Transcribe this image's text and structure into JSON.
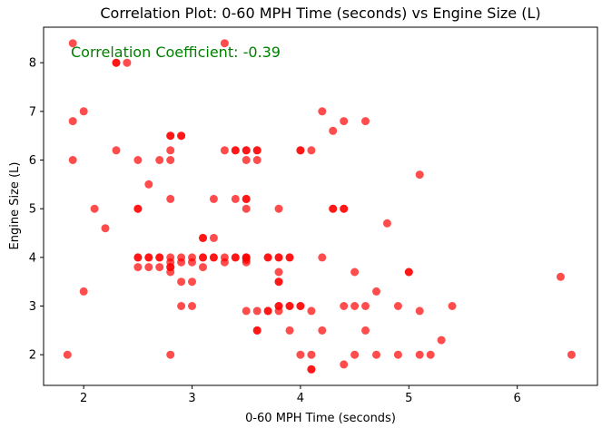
{
  "chart_data": {
    "type": "scatter",
    "title": "Correlation Plot: 0-60 MPH Time (seconds) vs Engine Size (L)",
    "xlabel": "0-60 MPH Time (seconds)",
    "ylabel": "Engine Size (L)",
    "xlim": [
      1.63,
      6.74
    ],
    "ylim": [
      1.37,
      8.73
    ],
    "xticks": [
      "2",
      "3",
      "4",
      "5",
      "6"
    ],
    "yticks": [
      "2",
      "3",
      "4",
      "5",
      "6",
      "7",
      "8"
    ],
    "grid": false,
    "annotation": "Correlation Coefficient: -0.39",
    "annotation_color": "#008000",
    "marker_color": "#ff0000",
    "marker_alpha": 0.7,
    "points": [
      [
        1.9,
        8.4
      ],
      [
        3.3,
        8.4
      ],
      [
        2.3,
        8.0
      ],
      [
        2.3,
        8.0
      ],
      [
        2.4,
        8.0
      ],
      [
        2.0,
        7.0
      ],
      [
        1.9,
        6.8
      ],
      [
        4.2,
        7.0
      ],
      [
        4.4,
        6.8
      ],
      [
        4.6,
        6.8
      ],
      [
        4.3,
        6.6
      ],
      [
        2.8,
        6.5
      ],
      [
        2.8,
        6.5
      ],
      [
        2.9,
        6.5
      ],
      [
        2.9,
        6.5
      ],
      [
        2.3,
        6.2
      ],
      [
        2.8,
        6.2
      ],
      [
        3.3,
        6.2
      ],
      [
        3.4,
        6.2
      ],
      [
        3.4,
        6.2
      ],
      [
        3.5,
        6.2
      ],
      [
        3.5,
        6.2
      ],
      [
        3.6,
        6.2
      ],
      [
        3.6,
        6.2
      ],
      [
        4.0,
        6.2
      ],
      [
        4.0,
        6.2
      ],
      [
        4.1,
        6.2
      ],
      [
        1.9,
        6.0
      ],
      [
        2.5,
        6.0
      ],
      [
        2.7,
        6.0
      ],
      [
        2.8,
        6.0
      ],
      [
        3.5,
        6.0
      ],
      [
        3.6,
        6.0
      ],
      [
        5.1,
        5.7
      ],
      [
        2.6,
        5.5
      ],
      [
        2.8,
        5.2
      ],
      [
        3.2,
        5.2
      ],
      [
        3.4,
        5.2
      ],
      [
        3.5,
        5.2
      ],
      [
        3.5,
        5.2
      ],
      [
        2.1,
        5.0
      ],
      [
        2.5,
        5.0
      ],
      [
        2.5,
        5.0
      ],
      [
        3.5,
        5.0
      ],
      [
        3.8,
        5.0
      ],
      [
        4.3,
        5.0
      ],
      [
        4.3,
        5.0
      ],
      [
        4.4,
        5.0
      ],
      [
        4.4,
        5.0
      ],
      [
        4.8,
        4.7
      ],
      [
        2.2,
        4.6
      ],
      [
        3.1,
        4.4
      ],
      [
        3.1,
        4.4
      ],
      [
        3.2,
        4.4
      ],
      [
        2.5,
        4.0
      ],
      [
        2.5,
        4.0
      ],
      [
        2.6,
        4.0
      ],
      [
        2.6,
        4.0
      ],
      [
        2.7,
        4.0
      ],
      [
        2.7,
        4.0
      ],
      [
        2.8,
        4.0
      ],
      [
        2.9,
        4.0
      ],
      [
        3.0,
        4.0
      ],
      [
        3.1,
        4.0
      ],
      [
        3.1,
        4.0
      ],
      [
        3.2,
        4.0
      ],
      [
        3.2,
        4.0
      ],
      [
        3.3,
        4.0
      ],
      [
        3.4,
        4.0
      ],
      [
        3.4,
        4.0
      ],
      [
        3.5,
        4.0
      ],
      [
        3.5,
        4.0
      ],
      [
        3.5,
        4.0
      ],
      [
        3.7,
        4.0
      ],
      [
        3.7,
        4.0
      ],
      [
        3.8,
        4.0
      ],
      [
        3.8,
        4.0
      ],
      [
        3.9,
        4.0
      ],
      [
        3.9,
        4.0
      ],
      [
        4.2,
        4.0
      ],
      [
        3.5,
        3.95
      ],
      [
        3.3,
        3.9
      ],
      [
        3.5,
        3.9
      ],
      [
        2.9,
        3.9
      ],
      [
        2.8,
        3.9
      ],
      [
        3.0,
        3.9
      ],
      [
        2.5,
        3.8
      ],
      [
        2.6,
        3.8
      ],
      [
        2.7,
        3.8
      ],
      [
        2.8,
        3.8
      ],
      [
        2.8,
        3.8
      ],
      [
        3.1,
        3.8
      ],
      [
        3.8,
        3.7
      ],
      [
        4.5,
        3.7
      ],
      [
        5.0,
        3.7
      ],
      [
        5.0,
        3.7
      ],
      [
        2.8,
        3.7
      ],
      [
        6.4,
        3.6
      ],
      [
        2.9,
        3.5
      ],
      [
        3.0,
        3.5
      ],
      [
        3.8,
        3.5
      ],
      [
        3.8,
        3.5
      ],
      [
        4.7,
        3.3
      ],
      [
        2.0,
        3.3
      ],
      [
        2.9,
        3.0
      ],
      [
        3.0,
        3.0
      ],
      [
        3.8,
        3.0
      ],
      [
        3.8,
        3.0
      ],
      [
        3.9,
        3.0
      ],
      [
        3.9,
        3.0
      ],
      [
        4.0,
        3.0
      ],
      [
        4.0,
        3.0
      ],
      [
        4.4,
        3.0
      ],
      [
        4.5,
        3.0
      ],
      [
        4.6,
        3.0
      ],
      [
        4.9,
        3.0
      ],
      [
        5.4,
        3.0
      ],
      [
        3.5,
        2.9
      ],
      [
        3.6,
        2.9
      ],
      [
        3.7,
        2.9
      ],
      [
        3.7,
        2.9
      ],
      [
        3.8,
        2.9
      ],
      [
        4.1,
        2.9
      ],
      [
        5.1,
        2.9
      ],
      [
        3.6,
        2.5
      ],
      [
        3.6,
        2.5
      ],
      [
        3.9,
        2.5
      ],
      [
        4.2,
        2.5
      ],
      [
        4.6,
        2.5
      ],
      [
        5.3,
        2.3
      ],
      [
        1.85,
        2.0
      ],
      [
        2.8,
        2.0
      ],
      [
        4.0,
        2.0
      ],
      [
        4.1,
        2.0
      ],
      [
        4.5,
        2.0
      ],
      [
        4.7,
        2.0
      ],
      [
        4.9,
        2.0
      ],
      [
        5.1,
        2.0
      ],
      [
        5.2,
        2.0
      ],
      [
        6.5,
        2.0
      ],
      [
        4.4,
        1.8
      ],
      [
        4.1,
        1.7
      ],
      [
        4.1,
        1.7
      ]
    ]
  }
}
